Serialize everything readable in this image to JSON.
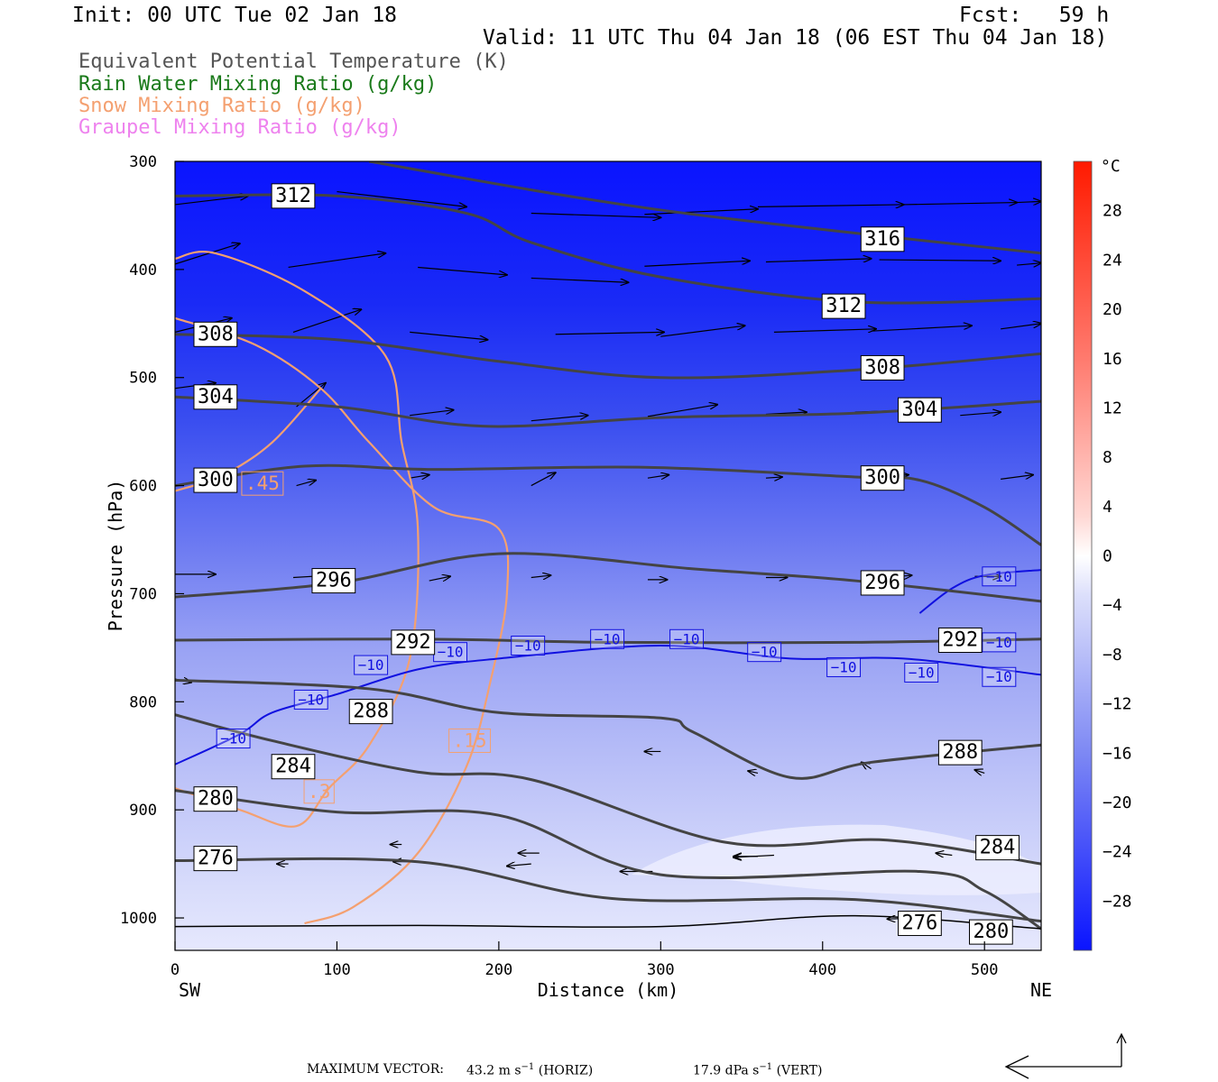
{
  "header": {
    "init": "Init: 00 UTC Tue 02 Jan 18",
    "fcst": "Fcst:   59 h",
    "valid": "Valid: 11 UTC Thu 04 Jan 18 (06 EST Thu 04 Jan 18)"
  },
  "legend": [
    {
      "label": "Equivalent Potential Temperature (K)",
      "color": "#555555"
    },
    {
      "label": "Rain Water Mixing Ratio (g/kg)",
      "color": "#1a7a1a"
    },
    {
      "label": "Snow Mixing Ratio (g/kg)",
      "color": "#f4a070"
    },
    {
      "label": "Graupel Mixing Ratio (g/kg)",
      "color": "#ee82ee"
    }
  ],
  "footer": {
    "max_label": "MAXIMUM VECTOR:",
    "horiz_value": "43.2 m s",
    "horiz_unit": "(HORIZ)",
    "vert_value": "17.9 dPa s",
    "vert_unit": "(VERT)",
    "exp": "−1"
  },
  "chart_data": {
    "type": "contour",
    "xlabel": "Distance (km)",
    "ylabel": "Pressure (hPa)",
    "xlim": [
      0,
      535
    ],
    "ylim": [
      1030,
      300
    ],
    "x_ticks": [
      0,
      100,
      200,
      300,
      400,
      500
    ],
    "y_ticks": [
      300,
      400,
      500,
      600,
      700,
      800,
      900,
      1000
    ],
    "x_end_labels": {
      "left": "SW",
      "right": "NE"
    },
    "colorbar": {
      "unit": "°C",
      "ticks": [
        28,
        24,
        20,
        16,
        12,
        8,
        4,
        0,
        -4,
        -8,
        -12,
        -16,
        -20,
        -24,
        -28
      ],
      "tick_labels": [
        "28",
        "24",
        "20",
        "16",
        "12",
        "8",
        "4",
        "0",
        "−4",
        "−8",
        "−12",
        "−16",
        "−20",
        "−24",
        "−28"
      ],
      "range": [
        -32,
        32
      ]
    },
    "theta_e": [
      {
        "value": 316,
        "label": "316",
        "label_at": [
          437,
          372
        ],
        "points": [
          [
            120,
            300
          ],
          [
            300,
            345
          ],
          [
            535,
            385
          ]
        ]
      },
      {
        "value": 312,
        "label": "312",
        "label_at": [
          73,
          332
        ],
        "points": [
          [
            0,
            332
          ],
          [
            100,
            332
          ],
          [
            180,
            348
          ],
          [
            220,
            375
          ],
          [
            300,
            407
          ],
          [
            420,
            430
          ],
          [
            535,
            427
          ]
        ],
        "label2": "312",
        "label2_at": [
          413,
          434
        ]
      },
      {
        "value": 308,
        "label": "308",
        "label_at": [
          25,
          460
        ],
        "points": [
          [
            0,
            460
          ],
          [
            100,
            465
          ],
          [
            200,
            485
          ],
          [
            300,
            500
          ],
          [
            420,
            493
          ],
          [
            535,
            478
          ]
        ],
        "label2": "308",
        "label2_at": [
          437,
          491
        ]
      },
      {
        "value": 304,
        "label": "304",
        "label_at": [
          25,
          518
        ],
        "points": [
          [
            0,
            518
          ],
          [
            100,
            527
          ],
          [
            190,
            545
          ],
          [
            300,
            537
          ],
          [
            420,
            533
          ],
          [
            535,
            522
          ]
        ],
        "label2": "304",
        "label2_at": [
          460,
          530
        ]
      },
      {
        "value": 300,
        "label": "300",
        "label_at": [
          25,
          595
        ],
        "points": [
          [
            0,
            600
          ],
          [
            80,
            582
          ],
          [
            160,
            585
          ],
          [
            290,
            583
          ],
          [
            420,
            592
          ],
          [
            460,
            595
          ],
          [
            500,
            620
          ],
          [
            535,
            655
          ]
        ],
        "label2": "300",
        "label2_at": [
          437,
          593
        ]
      },
      {
        "value": 296,
        "label": "296",
        "label_at": [
          98,
          688
        ],
        "points": [
          [
            0,
            703
          ],
          [
            100,
            690
          ],
          [
            200,
            663
          ],
          [
            320,
            677
          ],
          [
            420,
            688
          ],
          [
            535,
            707
          ]
        ],
        "label2": "296",
        "label2_at": [
          437,
          690
        ]
      },
      {
        "value": 292,
        "label": "292",
        "label_at": [
          147,
          745
        ],
        "points": [
          [
            0,
            743
          ],
          [
            150,
            742
          ],
          [
            270,
            745
          ],
          [
            420,
            745
          ],
          [
            535,
            742
          ]
        ],
        "label2": "292",
        "label2_at": [
          485,
          743
        ]
      },
      {
        "value": 288,
        "label": "288",
        "label_at": [
          121,
          809
        ],
        "points": [
          [
            0,
            780
          ],
          [
            120,
            788
          ],
          [
            200,
            810
          ],
          [
            300,
            815
          ],
          [
            320,
            828
          ],
          [
            380,
            870
          ],
          [
            430,
            856
          ],
          [
            535,
            840
          ]
        ],
        "label2": "288",
        "label2_at": [
          485,
          847
        ]
      },
      {
        "value": 284,
        "label": "284",
        "label_at": [
          73,
          860
        ],
        "points": [
          [
            0,
            812
          ],
          [
            60,
            836
          ],
          [
            150,
            865
          ],
          [
            220,
            872
          ],
          [
            340,
            930
          ],
          [
            440,
            928
          ],
          [
            535,
            950
          ]
        ],
        "label2": "284",
        "label2_at": [
          508,
          935
        ]
      },
      {
        "value": 280,
        "label": "280",
        "label_at": [
          25,
          890
        ],
        "points": [
          [
            0,
            882
          ],
          [
            100,
            902
          ],
          [
            200,
            905
          ],
          [
            300,
            960
          ],
          [
            460,
            957
          ],
          [
            500,
            975
          ],
          [
            535,
            1010
          ]
        ],
        "label2": "280",
        "label2_at": [
          504,
          1013
        ]
      },
      {
        "value": 276,
        "label": "276",
        "label_at": [
          25,
          945
        ],
        "points": [
          [
            0,
            947
          ],
          [
            150,
            948
          ],
          [
            270,
            982
          ],
          [
            420,
            983
          ],
          [
            535,
            1003
          ]
        ],
        "label2": "276",
        "label2_at": [
          460,
          1005
        ]
      }
    ],
    "temperature_contours": [
      {
        "value": -10,
        "label": "−10",
        "points": [
          [
            0,
            858
          ],
          [
            40,
            830
          ],
          [
            60,
            810
          ],
          [
            100,
            793
          ],
          [
            150,
            770
          ],
          [
            200,
            760
          ],
          [
            300,
            748
          ],
          [
            380,
            760
          ],
          [
            450,
            760
          ],
          [
            535,
            775
          ]
        ]
      },
      {
        "value": -10,
        "label": "−10",
        "points": [
          [
            460,
            718
          ],
          [
            480,
            695
          ],
          [
            500,
            683
          ],
          [
            535,
            678
          ]
        ]
      }
    ],
    "temperature_labels": [
      [
        36,
        834
      ],
      [
        84,
        798
      ],
      [
        121,
        766
      ],
      [
        170,
        754
      ],
      [
        218,
        748
      ],
      [
        267,
        742
      ],
      [
        316,
        742
      ],
      [
        364,
        754
      ],
      [
        413,
        768
      ],
      [
        461,
        773
      ],
      [
        509,
        777
      ],
      [
        509,
        745
      ],
      [
        509,
        684
      ]
    ],
    "snow_mixing_ratio": [
      {
        "value": 0.45,
        "label": ".45",
        "label_at": [
          54,
          598
        ],
        "points": [
          [
            0,
            605
          ],
          [
            30,
            590
          ],
          [
            60,
            560
          ],
          [
            90,
            510
          ]
        ]
      },
      {
        "value": 0.3,
        "label": ".3",
        "label_at": [
          89,
          883
        ],
        "points": [
          [
            0,
            390
          ],
          [
            25,
            385
          ],
          [
            80,
            420
          ],
          [
            130,
            480
          ],
          [
            140,
            560
          ],
          [
            150,
            640
          ],
          [
            145,
            760
          ],
          [
            120,
            840
          ],
          [
            95,
            880
          ],
          [
            75,
            915
          ],
          [
            40,
            900
          ],
          [
            0,
            880
          ]
        ]
      },
      {
        "value": 0.15,
        "label": ".15",
        "label_at": [
          182,
          836
        ],
        "points": [
          [
            0,
            445
          ],
          [
            50,
            470
          ],
          [
            90,
            510
          ],
          [
            120,
            560
          ],
          [
            160,
            620
          ],
          [
            200,
            640
          ],
          [
            205,
            700
          ],
          [
            195,
            780
          ],
          [
            180,
            860
          ],
          [
            150,
            940
          ],
          [
            110,
            990
          ],
          [
            80,
            1005
          ]
        ]
      }
    ],
    "wind_vectors_unit": "m/s and dPa/s",
    "max_vector": {
      "horizontal": 43.2,
      "vertical": 17.9
    }
  }
}
